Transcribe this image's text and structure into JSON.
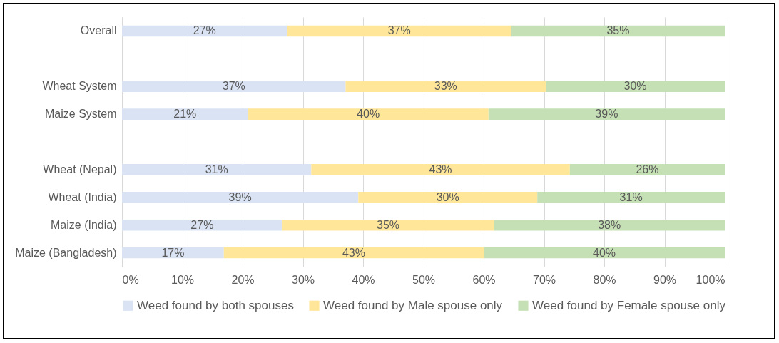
{
  "chart_data": {
    "type": "bar",
    "orientation": "horizontal",
    "stacked": true,
    "categories": [
      "Overall",
      null,
      "Wheat System",
      "Maize System",
      null,
      "Wheat (Nepal)",
      "Wheat (India)",
      "Maize (India)",
      "Maize (Bangladesh)"
    ],
    "series": [
      {
        "name": "Weed found by both spouses",
        "color": "#dae3f3",
        "values": [
          27.4,
          null,
          37.1,
          20.9,
          null,
          31.4,
          39.2,
          26.6,
          16.9
        ],
        "value_labels": [
          "27%",
          null,
          "37%",
          "21%",
          null,
          "31%",
          "39%",
          "27%",
          "17%"
        ]
      },
      {
        "name": "Weed found by Male spouse only",
        "color": "#ffe699",
        "values": [
          37.2,
          null,
          33.2,
          39.9,
          null,
          42.9,
          29.7,
          35.1,
          43.1
        ],
        "value_labels": [
          "37%",
          null,
          "33%",
          "40%",
          null,
          "43%",
          "30%",
          "35%",
          "43%"
        ]
      },
      {
        "name": "Weed found by Female spouse only",
        "color": "#c5e0b4",
        "values": [
          35.4,
          null,
          29.7,
          39.2,
          null,
          25.7,
          31.1,
          38.3,
          40.0
        ],
        "value_labels": [
          "35%",
          null,
          "30%",
          "39%",
          null,
          "26%",
          "31%",
          "38%",
          "40%"
        ]
      }
    ],
    "xlim": [
      0,
      100
    ],
    "xticks": [
      {
        "value": 0,
        "label": "0%"
      },
      {
        "value": 10,
        "label": "10%"
      },
      {
        "value": 20,
        "label": "20%"
      },
      {
        "value": 30,
        "label": "30%"
      },
      {
        "value": 40,
        "label": "40%"
      },
      {
        "value": 50,
        "label": "50%"
      },
      {
        "value": 60,
        "label": "60%"
      },
      {
        "value": 70,
        "label": "70%"
      },
      {
        "value": 80,
        "label": "80%"
      },
      {
        "value": 90,
        "label": "90%"
      },
      {
        "value": 100,
        "label": "100%"
      }
    ],
    "grid": "x",
    "legend": "bottom"
  }
}
